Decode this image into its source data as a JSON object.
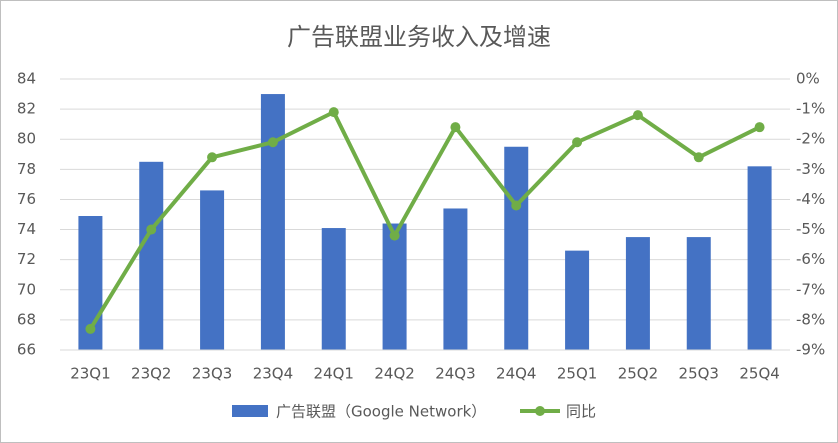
{
  "chart_data": {
    "type": "bar-line",
    "title": "广告联盟业务收入及增速",
    "categories": [
      "23Q1",
      "23Q2",
      "23Q3",
      "23Q4",
      "24Q1",
      "24Q2",
      "24Q3",
      "24Q4",
      "25Q1",
      "25Q2",
      "25Q3",
      "25Q4"
    ],
    "series": [
      {
        "name": "广告联盟（Google Network）",
        "type": "bar",
        "color": "#4472c4",
        "values": [
          74.9,
          78.5,
          76.6,
          83.0,
          74.1,
          74.4,
          75.4,
          79.5,
          72.6,
          73.5,
          73.5,
          78.2
        ]
      },
      {
        "name": "同比",
        "type": "line",
        "axis": "y2",
        "color": "#70ad47",
        "values": [
          -8.3,
          -5.0,
          -2.6,
          -2.1,
          -1.1,
          -5.2,
          -1.6,
          -4.2,
          -2.1,
          -1.2,
          -2.6,
          -1.6
        ]
      }
    ],
    "ylim": [
      66,
      84
    ],
    "yticks": [
      66,
      68,
      70,
      72,
      74,
      76,
      78,
      80,
      82,
      84
    ],
    "y2lim": [
      -9,
      0
    ],
    "y2ticks": [
      {
        "value": 0,
        "label": "0%"
      },
      {
        "value": -1,
        "label": "-1%"
      },
      {
        "value": -2,
        "label": "-2%"
      },
      {
        "value": -3,
        "label": "-3%"
      },
      {
        "value": -4,
        "label": "-4%"
      },
      {
        "value": -5,
        "label": "-5%"
      },
      {
        "value": -6,
        "label": "-6%"
      },
      {
        "value": -7,
        "label": "-7%"
      },
      {
        "value": -8,
        "label": "-8%"
      },
      {
        "value": -9,
        "label": "-9%"
      }
    ],
    "grid": true,
    "legend": "bottom"
  }
}
